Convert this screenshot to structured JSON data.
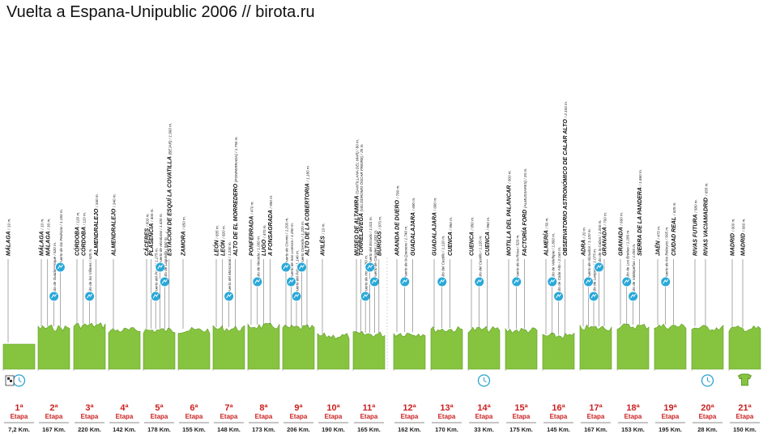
{
  "title": "Vuelta a Espana-Unipublic 2006 // birota.ru",
  "colors": {
    "terrain": "#86c440",
    "climb": "#29a8d8",
    "stage": "#cc1f1f",
    "rest": "#2aa3cf"
  },
  "stage_word": "Etapa",
  "stages": [
    {
      "num": "1ª",
      "km": "7,2 Km.",
      "type": "itt",
      "labels": [
        {
          "t": "MÁLAGA",
          "s": "/ 10 m."
        }
      ]
    },
    {
      "num": "2ª",
      "km": "167 Km.",
      "type": "road",
      "labels": [
        {
          "t": "MÁLAGA",
          "s": "/ 10 m."
        },
        {
          "t": "MÁLAGA",
          "s": "/ 30 m."
        },
        {
          "t": "",
          "s": "Alto de Guadarranque / 520 m.",
          "climb": true
        },
        {
          "t": "",
          "s": "Puerto de las Pedrizas / 1.150 m.",
          "climb": true
        }
      ]
    },
    {
      "num": "3ª",
      "km": "220 Km.",
      "type": "road",
      "labels": [
        {
          "t": "CÓRDOBA",
          "s": "/ 120 m."
        },
        {
          "t": "CÓRDOBA",
          "s": "/ 110 m."
        },
        {
          "t": "",
          "s": "Alto de los Villares / 620 m.",
          "climb": true
        },
        {
          "t": "ALMENDRALEJO",
          "s": "/ 340 m."
        }
      ]
    },
    {
      "num": "4ª",
      "km": "142 Km.",
      "type": "road",
      "labels": [
        {
          "t": "ALMENDRALEJO",
          "s": "/ 340 m."
        }
      ]
    },
    {
      "num": "5ª",
      "km": "178 Km.",
      "type": "road",
      "labels": [
        {
          "t": "CÁCERES",
          "s": "/ 500 m."
        },
        {
          "t": "PLASENCIA",
          "s": "/ 400 m."
        },
        {
          "t": "",
          "s": "Puerto del Portal / 1.275 m.",
          "climb": true
        },
        {
          "t": "",
          "s": "Puerto de Honduras / 1.430 m.",
          "climb": true
        },
        {
          "t": "",
          "s": "Alto de Lagunilla / 960 m.",
          "climb": true
        },
        {
          "t": "ESTACIÓN DE ESQUÍ LA COVATILLA",
          "s": "(BÉJAR) / 1.960 m."
        }
      ]
    },
    {
      "num": "6ª",
      "km": "155 Km.",
      "type": "road",
      "labels": [
        {
          "t": "ZAMORA",
          "s": "/ 650 m."
        }
      ]
    },
    {
      "num": "7ª",
      "km": "148 Km.",
      "type": "road",
      "labels": [
        {
          "t": "LEÓN",
          "s": "/ 835 m."
        },
        {
          "t": "LEÓN",
          "s": "/ 820 m."
        },
        {
          "t": "",
          "s": "Puerto del Manzanal / 1.230 m.",
          "climb": true
        },
        {
          "t": "ALTO DE EL MORREDERO",
          "s": "(PONFERRADA) / 1.750 m."
        }
      ]
    },
    {
      "num": "8ª",
      "km": "173 Km.",
      "type": "road",
      "labels": [
        {
          "t": "PONFERRADA",
          "s": "/ 470 m."
        },
        {
          "t": "",
          "s": "Alto de Noceda / 1.000 m.",
          "climb": true
        },
        {
          "t": "LUGO",
          "s": "/ 470 m."
        },
        {
          "t": "A FONSAGRADA",
          "s": "/ 950 m."
        }
      ]
    },
    {
      "num": "9ª",
      "km": "206 Km.",
      "type": "road",
      "labels": [
        {
          "t": "",
          "s": "Puerto de Connio / 1.200 m.",
          "climb": true
        },
        {
          "t": "",
          "s": "Puerto de San Lorenzo / 1.350 m.",
          "climb": true
        },
        {
          "t": "",
          "s": "Puerto del Palo / 1.146 m.",
          "climb": true
        },
        {
          "t": "",
          "s": "Puerto Cerredo / 1.220 m.",
          "climb": true
        },
        {
          "t": "ALTO DE LA COBERTORIA",
          "s": "/ 1.180 m."
        }
      ]
    },
    {
      "num": "10ª",
      "km": "190 Km.",
      "type": "road",
      "labels": [
        {
          "t": "AVILÉS",
          "s": "/ 10 m."
        }
      ]
    },
    {
      "num": "11ª",
      "km": "165 Km.",
      "type": "road",
      "labels": [
        {
          "t": "MUSEO DE ALTAMIRA",
          "s": "(SANTILLANA DEL MAR) / 80 m."
        },
        {
          "t": "TORRELAVEGA",
          "s": "(VELÓDROMO ÓSCAR FREIRE) / 25 m."
        },
        {
          "t": "",
          "s": "Puerto de Hoz / 650 m.",
          "climb": true
        },
        {
          "t": "",
          "s": "Puerto del Escudo / 1.011 m.",
          "climb": true
        },
        {
          "t": "",
          "s": "Puerto de Carrales / 1.020 m.",
          "climb": true
        },
        {
          "t": "BURGOS",
          "s": "/ 870 m."
        }
      ]
    },
    {
      "num": "12ª",
      "km": "162 Km.",
      "type": "road",
      "labels": [
        {
          "t": "ARANDA DE DUERO",
          "s": "/ 790 m."
        },
        {
          "t": "",
          "s": "Puerto de la Quesera / 1.740 m.",
          "climb": true
        },
        {
          "t": "GUADALAJARA",
          "s": "/ 690 m."
        }
      ]
    },
    {
      "num": "13ª",
      "km": "170 Km.",
      "type": "road",
      "labels": [
        {
          "t": "GUADALAJARA",
          "s": "/ 680 m."
        },
        {
          "t": "",
          "s": "Alto del Castillo / 1.120 m.",
          "climb": true
        },
        {
          "t": "CUENCA",
          "s": "/ 950 m."
        }
      ]
    },
    {
      "num": "14ª",
      "km": "33 Km.",
      "type": "itt",
      "labels": [
        {
          "t": "CUENCA",
          "s": "/ 950 m."
        },
        {
          "t": "",
          "s": "Alto del Castillo / 1.120 m.",
          "climb": true
        },
        {
          "t": "CUENCA",
          "s": "/ 950 m."
        }
      ]
    },
    {
      "num": "15ª",
      "km": "175 Km.",
      "type": "road",
      "labels": [
        {
          "t": "MOTILLA DEL PALANCAR",
          "s": "/ 900 m."
        },
        {
          "t": "",
          "s": "Puerto de la Rosa / 520 m.",
          "climb": true
        },
        {
          "t": "FACTORÍA FORD",
          "s": "(ALMUSSAFES) / 20 m."
        }
      ]
    },
    {
      "num": "16ª",
      "km": "145 Km.",
      "type": "road",
      "labels": [
        {
          "t": "ALMERÍA",
          "s": "/ 50 m."
        },
        {
          "t": "",
          "s": "Alto de Velefique / 1.800 m.",
          "climb": true
        },
        {
          "t": "",
          "s": "Alto de Calar Alto / 2.160 m.",
          "climb": true
        },
        {
          "t": "OBSERVATORIO ASTRONÓMICO DE CALAR ALTO",
          "s": "/ 2.100 m."
        }
      ]
    },
    {
      "num": "17ª",
      "km": "167 Km.",
      "type": "road",
      "labels": [
        {
          "t": "ADRA",
          "s": "/ 20 m."
        },
        {
          "t": "",
          "s": "Puerto de Alcaudon / 1.120 m.",
          "climb": true
        },
        {
          "t": "",
          "s": "Alto de Lanjarón / 1.075 m.",
          "climb": true
        },
        {
          "t": "",
          "s": "Alto de la Cabra / 1.200 m.",
          "climb": true
        },
        {
          "t": "GRANADA",
          "s": "/ 700 m."
        }
      ]
    },
    {
      "num": "18ª",
      "km": "153 Km.",
      "type": "road",
      "labels": [
        {
          "t": "GRANADA",
          "s": "/ 660 m."
        },
        {
          "t": "",
          "s": "Alto de Los Bredas / 1.180 m.",
          "climb": true
        },
        {
          "t": "",
          "s": "Alto de Valdepeñas / 1.050 m.",
          "climb": true
        },
        {
          "t": "SIERRA DE LA PANDERA",
          "s": "/ 1.860 m."
        }
      ]
    },
    {
      "num": "19ª",
      "km": "195 Km.",
      "type": "road",
      "labels": [
        {
          "t": "JAÉN",
          "s": "/ 470 m."
        },
        {
          "t": "",
          "s": "Puerto de los Reboyos / 905 m.",
          "climb": true
        },
        {
          "t": "CIUDAD REAL",
          "s": "/ 635 m."
        }
      ]
    },
    {
      "num": "20ª",
      "km": "28 Km.",
      "type": "itt",
      "labels": [
        {
          "t": "RIVAS FUTURA",
          "s": "/ 580 m."
        },
        {
          "t": "RIVAS VACIAMADRID",
          "s": "/ 655 m."
        }
      ]
    },
    {
      "num": "21ª",
      "km": "150 Km.",
      "type": "final",
      "labels": [
        {
          "t": "MADRID",
          "s": "/ 600 m."
        },
        {
          "t": "MADRID",
          "s": "/ 660 m."
        }
      ]
    }
  ]
}
